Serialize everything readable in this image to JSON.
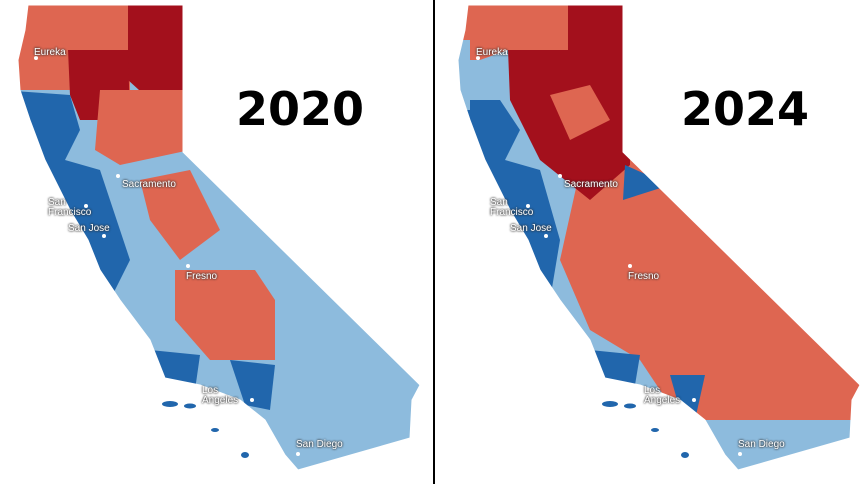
{
  "maps": [
    {
      "year": "2020",
      "cities": [
        "Eureka",
        "Sacramento",
        "San Francisco",
        "San Jose",
        "Fresno",
        "Los Angeles",
        "San Diego"
      ]
    },
    {
      "year": "2024",
      "cities": [
        "Eureka",
        "Sacramento",
        "San Francisco",
        "San Jose",
        "Fresno",
        "Los Angeles",
        "San Diego"
      ]
    }
  ]
}
